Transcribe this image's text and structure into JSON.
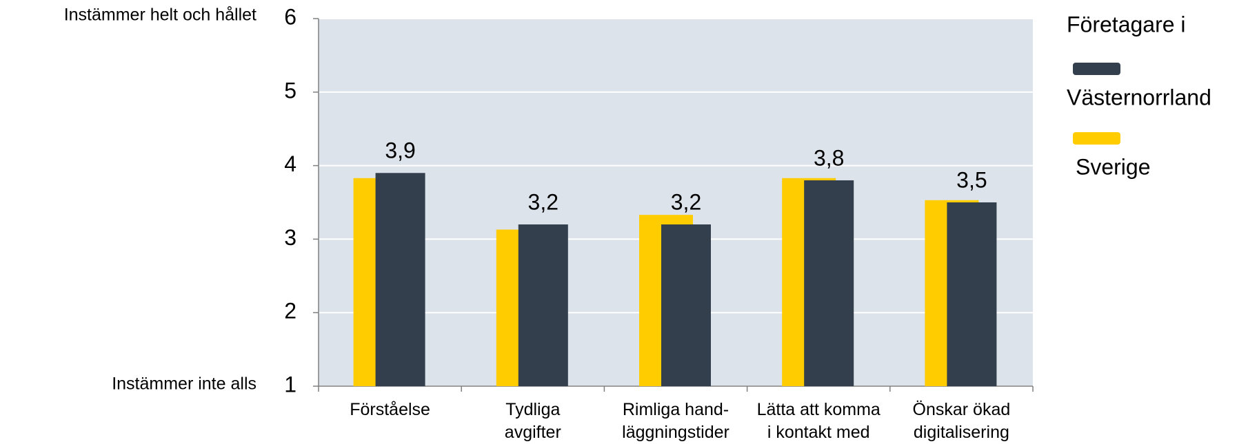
{
  "chart_data": {
    "type": "bar",
    "y_label_top": "Instämmer helt och hållet",
    "y_label_bottom": "Instämmer inte alls",
    "legend_title": "Företagare i",
    "categories": [
      "Förståelse",
      "Tydliga\navgifter",
      "Rimliga hand-\nläggningstider",
      "Lätta att komma\ni kontakt med",
      "Önskar ökad\ndigitalisering"
    ],
    "series": [
      {
        "name": "Västernorrland",
        "color": "#333f4c",
        "values": [
          3.9,
          3.2,
          3.2,
          3.8,
          3.5
        ],
        "value_labels": [
          "3,9",
          "3,2",
          "3,2",
          "3,8",
          "3,5"
        ]
      },
      {
        "name": "Sverige",
        "color": "#ffcc00",
        "values": [
          3.83,
          3.13,
          3.33,
          3.83,
          3.53
        ]
      }
    ],
    "ylim": [
      1,
      6
    ],
    "yticks": [
      1,
      2,
      3,
      4,
      5,
      6
    ],
    "grid": true,
    "plot_background": "#dde3ea"
  }
}
